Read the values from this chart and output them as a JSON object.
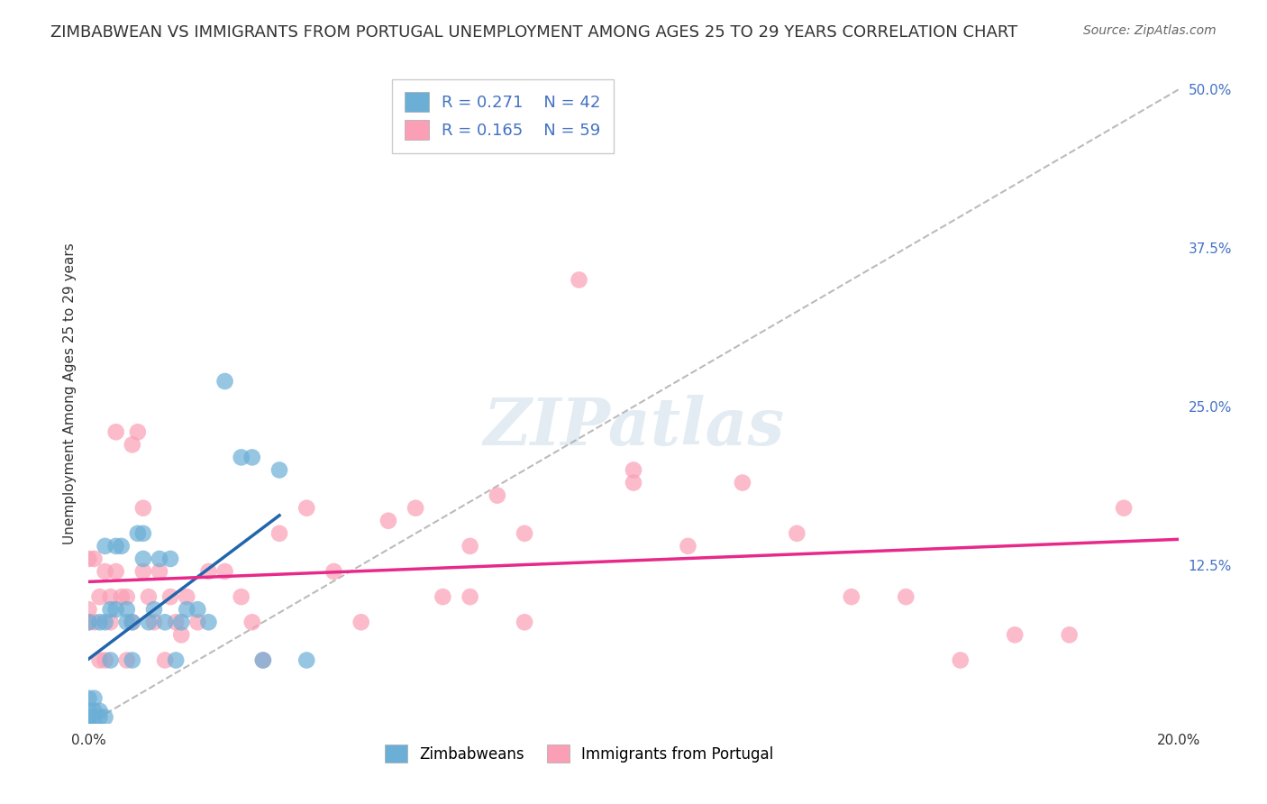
{
  "title": "ZIMBABWEAN VS IMMIGRANTS FROM PORTUGAL UNEMPLOYMENT AMONG AGES 25 TO 29 YEARS CORRELATION CHART",
  "source": "Source: ZipAtlas.com",
  "xlabel": "",
  "ylabel": "Unemployment Among Ages 25 to 29 years",
  "xlim": [
    0.0,
    0.2
  ],
  "ylim": [
    0.0,
    0.52
  ],
  "xticks": [
    0.0,
    0.05,
    0.1,
    0.15,
    0.2
  ],
  "xtick_labels": [
    "0.0%",
    "",
    "",
    "",
    "20.0%"
  ],
  "yticks_right": [
    0.125,
    0.25,
    0.375,
    0.5
  ],
  "ytick_labels_right": [
    "12.5%",
    "25.0%",
    "37.5%",
    "50.0%"
  ],
  "grid_color": "#cccccc",
  "background_color": "#ffffff",
  "watermark": "ZIPatlas",
  "zimbabwean_x": [
    0.0,
    0.0,
    0.0,
    0.0,
    0.0,
    0.001,
    0.001,
    0.001,
    0.002,
    0.002,
    0.002,
    0.003,
    0.003,
    0.003,
    0.004,
    0.004,
    0.005,
    0.005,
    0.006,
    0.007,
    0.007,
    0.008,
    0.008,
    0.009,
    0.01,
    0.01,
    0.011,
    0.012,
    0.013,
    0.014,
    0.015,
    0.016,
    0.017,
    0.018,
    0.02,
    0.022,
    0.025,
    0.028,
    0.03,
    0.032,
    0.035,
    0.04
  ],
  "zimbabwean_y": [
    0.0,
    0.005,
    0.01,
    0.02,
    0.08,
    0.0,
    0.01,
    0.02,
    0.005,
    0.01,
    0.08,
    0.005,
    0.08,
    0.14,
    0.05,
    0.09,
    0.09,
    0.14,
    0.14,
    0.08,
    0.09,
    0.05,
    0.08,
    0.15,
    0.13,
    0.15,
    0.08,
    0.09,
    0.13,
    0.08,
    0.13,
    0.05,
    0.08,
    0.09,
    0.09,
    0.08,
    0.27,
    0.21,
    0.21,
    0.05,
    0.2,
    0.05
  ],
  "portugal_x": [
    0.0,
    0.0,
    0.0,
    0.001,
    0.001,
    0.002,
    0.002,
    0.003,
    0.003,
    0.004,
    0.004,
    0.005,
    0.005,
    0.006,
    0.007,
    0.007,
    0.008,
    0.008,
    0.009,
    0.01,
    0.01,
    0.011,
    0.012,
    0.013,
    0.014,
    0.015,
    0.016,
    0.017,
    0.018,
    0.02,
    0.022,
    0.025,
    0.028,
    0.03,
    0.032,
    0.035,
    0.04,
    0.045,
    0.05,
    0.055,
    0.06,
    0.065,
    0.07,
    0.08,
    0.09,
    0.1,
    0.11,
    0.13,
    0.15,
    0.17,
    0.18,
    0.19,
    0.1,
    0.12,
    0.14,
    0.16,
    0.07,
    0.075,
    0.08
  ],
  "portugal_y": [
    0.08,
    0.09,
    0.13,
    0.08,
    0.13,
    0.05,
    0.1,
    0.05,
    0.12,
    0.08,
    0.1,
    0.12,
    0.23,
    0.1,
    0.05,
    0.1,
    0.08,
    0.22,
    0.23,
    0.12,
    0.17,
    0.1,
    0.08,
    0.12,
    0.05,
    0.1,
    0.08,
    0.07,
    0.1,
    0.08,
    0.12,
    0.12,
    0.1,
    0.08,
    0.05,
    0.15,
    0.17,
    0.12,
    0.08,
    0.16,
    0.17,
    0.1,
    0.1,
    0.08,
    0.35,
    0.19,
    0.14,
    0.15,
    0.1,
    0.07,
    0.07,
    0.17,
    0.2,
    0.19,
    0.1,
    0.05,
    0.14,
    0.18,
    0.15
  ],
  "zim_R": 0.271,
  "zim_N": 42,
  "port_R": 0.165,
  "port_N": 59,
  "zim_color": "#6baed6",
  "port_color": "#fa9fb5",
  "zim_line_color": "#2166ac",
  "port_line_color": "#e7298a",
  "ref_line_color": "#aaaaaa",
  "legend_label_zim": "Zimbabweans",
  "legend_label_port": "Immigrants from Portugal"
}
